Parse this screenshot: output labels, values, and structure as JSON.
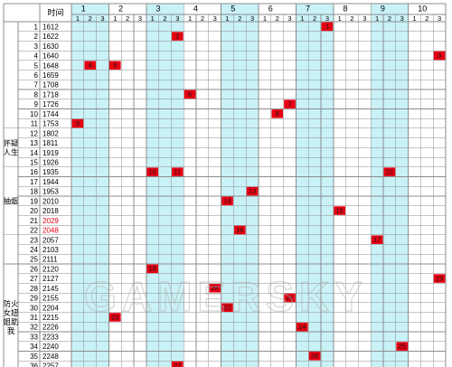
{
  "header": {
    "time_label": "时间",
    "days": [
      "1",
      "2",
      "3",
      "4",
      "5",
      "6",
      "7",
      "8",
      "9",
      "10"
    ],
    "slots": [
      "1",
      "2",
      "3"
    ]
  },
  "rows": [
    {
      "n": "1",
      "time": "1612"
    },
    {
      "n": "2",
      "time": "1622"
    },
    {
      "n": "3",
      "time": "1630"
    },
    {
      "n": "4",
      "time": "1640"
    },
    {
      "n": "5",
      "time": "1648"
    },
    {
      "n": "6",
      "time": "1659"
    },
    {
      "n": "7",
      "time": "1708"
    },
    {
      "n": "8",
      "time": "1718"
    },
    {
      "n": "9",
      "time": "1726"
    },
    {
      "n": "10",
      "time": "1744"
    },
    {
      "n": "11",
      "time": "1753"
    },
    {
      "n": "12",
      "time": "1802"
    },
    {
      "n": "13",
      "time": "1811"
    },
    {
      "n": "14",
      "time": "1919"
    },
    {
      "n": "15",
      "time": "1926"
    },
    {
      "n": "16",
      "time": "1935"
    },
    {
      "n": "17",
      "time": "1944"
    },
    {
      "n": "18",
      "time": "1953"
    },
    {
      "n": "19",
      "time": "2010"
    },
    {
      "n": "20",
      "time": "2018"
    },
    {
      "n": "21",
      "time": "2029",
      "red": true
    },
    {
      "n": "22",
      "time": "2048",
      "red": true
    },
    {
      "n": "23",
      "time": "2057"
    },
    {
      "n": "24",
      "time": "2103"
    },
    {
      "n": "25",
      "time": "2111"
    },
    {
      "n": "26",
      "time": "2120"
    },
    {
      "n": "27",
      "time": "2127"
    },
    {
      "n": "28",
      "time": "2145"
    },
    {
      "n": "29",
      "time": "2155"
    },
    {
      "n": "30",
      "time": "2204"
    },
    {
      "n": "31",
      "time": "2215"
    },
    {
      "n": "32",
      "time": "2226"
    },
    {
      "n": "33",
      "time": "2233"
    },
    {
      "n": "34",
      "time": "2240"
    },
    {
      "n": "35",
      "time": "2248"
    },
    {
      "n": "36",
      "time": "2257"
    }
  ],
  "groups": [
    {
      "label": "怀疑人生",
      "start_row": 12,
      "end_row": 15
    },
    {
      "label": "抽烟",
      "start_row": 16,
      "end_row": 22
    },
    {
      "label": "",
      "start_row": 23,
      "end_row": 25
    },
    {
      "label": "防火女妞姐助我",
      "start_row": 26,
      "end_row": 36
    }
  ],
  "marks": [
    {
      "row": 1,
      "day": 7,
      "slot": 3,
      "label": "1"
    },
    {
      "row": 2,
      "day": 3,
      "slot": 3,
      "label": "2"
    },
    {
      "row": 4,
      "day": 10,
      "slot": 3,
      "label": "3"
    },
    {
      "row": 5,
      "day": 1,
      "slot": 2,
      "label": "4"
    },
    {
      "row": 5,
      "day": 2,
      "slot": 1,
      "label": "5"
    },
    {
      "row": 8,
      "day": 4,
      "slot": 1,
      "label": "6"
    },
    {
      "row": 9,
      "day": 6,
      "slot": 3,
      "label": "7"
    },
    {
      "row": 10,
      "day": 6,
      "slot": 2,
      "label": "8"
    },
    {
      "row": 11,
      "day": 1,
      "slot": 1,
      "label": "9"
    },
    {
      "row": 16,
      "day": 3,
      "slot": 1,
      "label": "10"
    },
    {
      "row": 16,
      "day": 3,
      "slot": 3,
      "label": "11"
    },
    {
      "row": 16,
      "day": 9,
      "slot": 2,
      "label": "12"
    },
    {
      "row": 18,
      "day": 5,
      "slot": 3,
      "label": "13"
    },
    {
      "row": 19,
      "day": 5,
      "slot": 1,
      "label": "14"
    },
    {
      "row": 20,
      "day": 8,
      "slot": 1,
      "label": "15"
    },
    {
      "row": 22,
      "day": 5,
      "slot": 2,
      "label": "16"
    },
    {
      "row": 23,
      "day": 9,
      "slot": 1,
      "label": "17"
    },
    {
      "row": 26,
      "day": 3,
      "slot": 1,
      "label": "18"
    },
    {
      "row": 27,
      "day": 10,
      "slot": 3,
      "label": "19"
    },
    {
      "row": 28,
      "day": 4,
      "slot": 3,
      "label": "20"
    },
    {
      "row": 29,
      "day": 6,
      "slot": 3,
      "label": "21"
    },
    {
      "row": 30,
      "day": 5,
      "slot": 1,
      "label": "22"
    },
    {
      "row": 31,
      "day": 2,
      "slot": 1,
      "label": "23"
    },
    {
      "row": 32,
      "day": 7,
      "slot": 1,
      "label": "24"
    },
    {
      "row": 34,
      "day": 9,
      "slot": 3,
      "label": "25"
    },
    {
      "row": 35,
      "day": 7,
      "slot": 2,
      "label": "26"
    },
    {
      "row": 36,
      "day": 3,
      "slot": 3,
      "label": "27"
    }
  ],
  "highlight_days": [
    "1",
    "3",
    "5",
    "7",
    "9"
  ],
  "watermark": "GAMERSKY",
  "colors": {
    "cyan": "#c9f2f7",
    "red_mark": "#e60012",
    "red_text": "#e60012",
    "grid": "#8c8c8c",
    "text": "#000000"
  }
}
